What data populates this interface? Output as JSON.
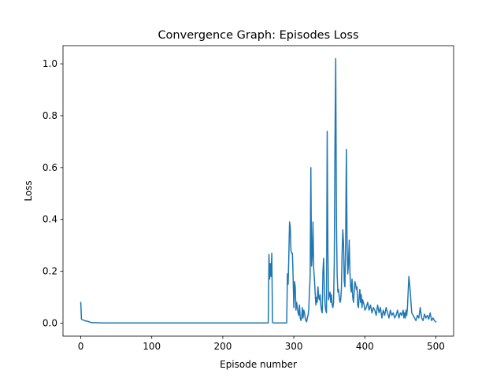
{
  "chart_data": {
    "type": "line",
    "title": "Convergence Graph: Episodes Loss",
    "xlabel": "Episode number",
    "ylabel": "Loss",
    "xlim": [
      -25,
      525
    ],
    "ylim": [
      -0.05,
      1.07
    ],
    "xticks": [
      0,
      100,
      200,
      300,
      400,
      500
    ],
    "xtick_labels": [
      "0",
      "100",
      "200",
      "300",
      "400",
      "500"
    ],
    "yticks": [
      0.0,
      0.2,
      0.4,
      0.6,
      0.8,
      1.0
    ],
    "ytick_labels": [
      "0.0",
      "0.2",
      "0.4",
      "0.6",
      "0.8",
      "1.0"
    ],
    "grid": false,
    "series": [
      {
        "name": "Episodes Loss",
        "color": "#1f77b4",
        "x": [
          0,
          1,
          3,
          5,
          8,
          10,
          12,
          14,
          16,
          20,
          30,
          50,
          100,
          150,
          200,
          250,
          262,
          264,
          265,
          266,
          267,
          268,
          269,
          270,
          271,
          290,
          291,
          292,
          293,
          294,
          295,
          296,
          297,
          298,
          299,
          300,
          301,
          302,
          303,
          304,
          305,
          306,
          307,
          308,
          309,
          310,
          311,
          312,
          313,
          314,
          315,
          316,
          317,
          318,
          319,
          320,
          321,
          322,
          323,
          324,
          325,
          326,
          327,
          328,
          329,
          330,
          331,
          332,
          333,
          334,
          335,
          336,
          337,
          338,
          339,
          340,
          341,
          342,
          343,
          344,
          345,
          346,
          347,
          348,
          349,
          350,
          351,
          352,
          353,
          354,
          355,
          356,
          357,
          358,
          359,
          360,
          361,
          362,
          363,
          364,
          365,
          366,
          367,
          368,
          369,
          370,
          371,
          372,
          373,
          374,
          375,
          376,
          377,
          378,
          379,
          380,
          381,
          382,
          383,
          384,
          385,
          386,
          387,
          388,
          389,
          390,
          391,
          392,
          393,
          394,
          395,
          396,
          397,
          398,
          399,
          400,
          402,
          404,
          406,
          408,
          410,
          412,
          414,
          416,
          418,
          420,
          422,
          424,
          426,
          428,
          430,
          432,
          434,
          436,
          438,
          440,
          442,
          444,
          446,
          448,
          450,
          452,
          454,
          455,
          456,
          457,
          458,
          459,
          460,
          462,
          464,
          466,
          468,
          470,
          472,
          474,
          476,
          478,
          480,
          482,
          484,
          486,
          488,
          490,
          492,
          494,
          496,
          498,
          500
        ],
        "values": [
          0.08,
          0.015,
          0.013,
          0.01,
          0.008,
          0.007,
          0.005,
          0.003,
          0.002,
          0.002,
          0.001,
          0.001,
          0.001,
          0.001,
          0.001,
          0.001,
          0.001,
          0.001,
          0.265,
          0.17,
          0.23,
          0.18,
          0.27,
          0.003,
          0.001,
          0.001,
          0.19,
          0.15,
          0.26,
          0.39,
          0.37,
          0.28,
          0.27,
          0.27,
          0.18,
          0.06,
          0.16,
          0.14,
          0.05,
          0.08,
          0.06,
          0.04,
          0.03,
          0.07,
          0.02,
          0.01,
          0.02,
          0.06,
          0.02,
          0.05,
          0.04,
          0.02,
          0.01,
          0.005,
          0.02,
          0.03,
          0.05,
          0.12,
          0.18,
          0.6,
          0.22,
          0.26,
          0.39,
          0.21,
          0.17,
          0.12,
          0.07,
          0.1,
          0.08,
          0.14,
          0.1,
          0.09,
          0.11,
          0.07,
          0.05,
          0.04,
          0.2,
          0.25,
          0.14,
          0.07,
          0.05,
          0.04,
          0.74,
          0.28,
          0.09,
          0.11,
          0.12,
          0.08,
          0.11,
          0.07,
          0.06,
          0.08,
          0.24,
          0.71,
          1.02,
          0.4,
          0.19,
          0.12,
          0.13,
          0.1,
          0.08,
          0.09,
          0.13,
          0.27,
          0.36,
          0.31,
          0.16,
          0.14,
          0.32,
          0.67,
          0.31,
          0.19,
          0.23,
          0.32,
          0.2,
          0.14,
          0.12,
          0.17,
          0.1,
          0.08,
          0.12,
          0.16,
          0.15,
          0.13,
          0.14,
          0.07,
          0.06,
          0.1,
          0.13,
          0.08,
          0.11,
          0.06,
          0.09,
          0.08,
          0.07,
          0.05,
          0.06,
          0.08,
          0.05,
          0.07,
          0.04,
          0.06,
          0.05,
          0.03,
          0.07,
          0.04,
          0.06,
          0.02,
          0.05,
          0.03,
          0.06,
          0.04,
          0.02,
          0.05,
          0.03,
          0.04,
          0.02,
          0.03,
          0.05,
          0.02,
          0.04,
          0.03,
          0.05,
          0.02,
          0.04,
          0.02,
          0.05,
          0.03,
          0.06,
          0.18,
          0.12,
          0.04,
          0.03,
          0.02,
          0.01,
          0.03,
          0.02,
          0.06,
          0.02,
          0.01,
          0.035,
          0.02,
          0.03,
          0.015,
          0.04,
          0.01,
          0.02,
          0.01,
          0.005
        ]
      }
    ]
  }
}
